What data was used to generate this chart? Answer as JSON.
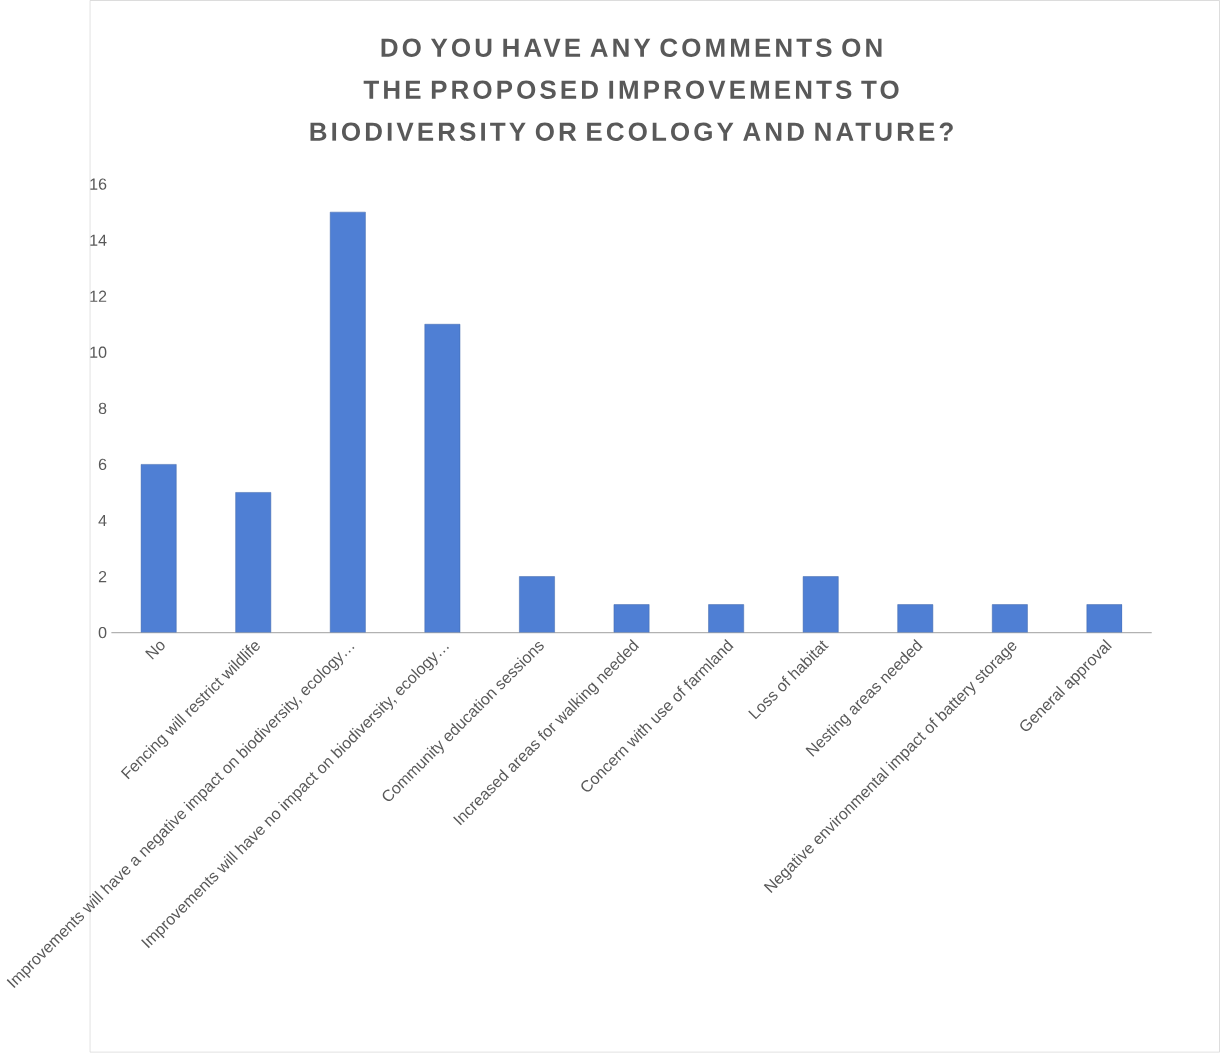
{
  "chart_data": {
    "type": "bar",
    "title": "DO YOU HAVE ANY COMMENTS ON THE PROPOSED IMPROVEMENTS TO BIODIVERSITY OR ECOLOGY AND NATURE?",
    "categories": [
      "No",
      "Fencing will restrict wildlife",
      "Improvements will have a negative impact on biodiversity, ecology…",
      "Improvements will have no impact on biodiversity, ecology…",
      "Community education sessions",
      "Increased areas for walking needed",
      "Concern with use of farmland",
      "Loss of habitat",
      "Nesting areas needed",
      "Negative environmental impact of battery storage",
      "General approval"
    ],
    "values": [
      6,
      5,
      15,
      11,
      2,
      1,
      1,
      2,
      1,
      1,
      1
    ],
    "color": "#4f7fd4",
    "ylim": [
      0,
      16
    ],
    "yticks": [
      0,
      2,
      4,
      6,
      8,
      10,
      12,
      14,
      16
    ]
  }
}
